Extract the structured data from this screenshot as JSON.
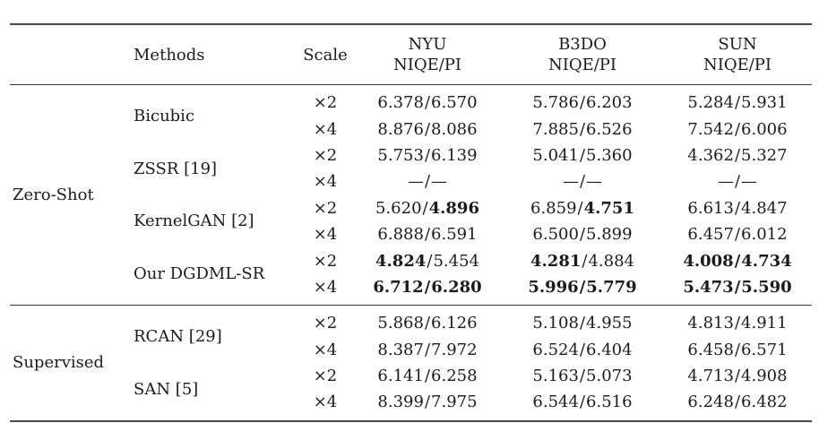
{
  "table": {
    "sep": "/",
    "header": {
      "methods": "Methods",
      "scale": "Scale",
      "cols": [
        {
          "l1": "NYU",
          "l2": "NIQE/PI"
        },
        {
          "l1": "B3DO",
          "l2": "NIQE/PI"
        },
        {
          "l1": "SUN",
          "l2": "NIQE/PI"
        }
      ]
    },
    "groups": [
      {
        "label": "Zero-Shot"
      },
      {
        "label": "Supervised"
      }
    ],
    "methods": [
      {
        "name": "Bicubic"
      },
      {
        "name": "ZSSR [19]"
      },
      {
        "name": "KernelGAN [2]"
      },
      {
        "name": "Our DGDML-SR"
      },
      {
        "name": "RCAN [29]"
      },
      {
        "name": "SAN [5]"
      }
    ],
    "rows": [
      {
        "scale": "×2",
        "n1": "6.378",
        "p1": "6.570",
        "n2": "5.786",
        "p2": "6.203",
        "n3": "5.284",
        "p3": "5.931"
      },
      {
        "scale": "×4",
        "n1": "8.876",
        "p1": "8.086",
        "n2": "7.885",
        "p2": "6.526",
        "n3": "7.542",
        "p3": "6.006"
      },
      {
        "scale": "×2",
        "n1": "5.753",
        "p1": "6.139",
        "n2": "5.041",
        "p2": "5.360",
        "n3": "4.362",
        "p3": "5.327"
      },
      {
        "scale": "×4",
        "n1": "—",
        "p1": "—",
        "n2": "—",
        "p2": "—",
        "n3": "—",
        "p3": "—"
      },
      {
        "scale": "×2",
        "n1": "5.620",
        "p1": "4.896",
        "bp1": true,
        "n2": "6.859",
        "p2": "4.751",
        "bp2": true,
        "n3": "6.613",
        "p3": "4.847"
      },
      {
        "scale": "×4",
        "n1": "6.888",
        "p1": "6.591",
        "n2": "6.500",
        "p2": "5.899",
        "n3": "6.457",
        "p3": "6.012"
      },
      {
        "scale": "×2",
        "n1": "4.824",
        "bn1": true,
        "p1": "5.454",
        "n2": "4.281",
        "bn2": true,
        "p2": "4.884",
        "n3": "4.008",
        "bn3": true,
        "bs3": true,
        "p3": "4.734",
        "bp3": true
      },
      {
        "scale": "×4",
        "n1": "6.712",
        "bn1": true,
        "bs1": true,
        "p1": "6.280",
        "bp1": true,
        "n2": "5.996",
        "bn2": true,
        "bs2": true,
        "p2": "5.779",
        "bp2": true,
        "n3": "5.473",
        "bn3": true,
        "bs3": true,
        "p3": "5.590",
        "bp3": true
      },
      {
        "scale": "×2",
        "n1": "5.868",
        "p1": "6.126",
        "n2": "5.108",
        "p2": "4.955",
        "n3": "4.813",
        "p3": "4.911"
      },
      {
        "scale": "×4",
        "n1": "8.387",
        "p1": "7.972",
        "n2": "6.524",
        "p2": "6.404",
        "n3": "6.458",
        "p3": "6.571"
      },
      {
        "scale": "×2",
        "n1": "6.141",
        "p1": "6.258",
        "n2": "5.163",
        "p2": "5.073",
        "n3": "4.713",
        "p3": "4.908"
      },
      {
        "scale": "×4",
        "n1": "8.399",
        "p1": "7.975",
        "n2": "6.544",
        "p2": "6.516",
        "n3": "6.248",
        "p3": "6.482"
      }
    ]
  }
}
